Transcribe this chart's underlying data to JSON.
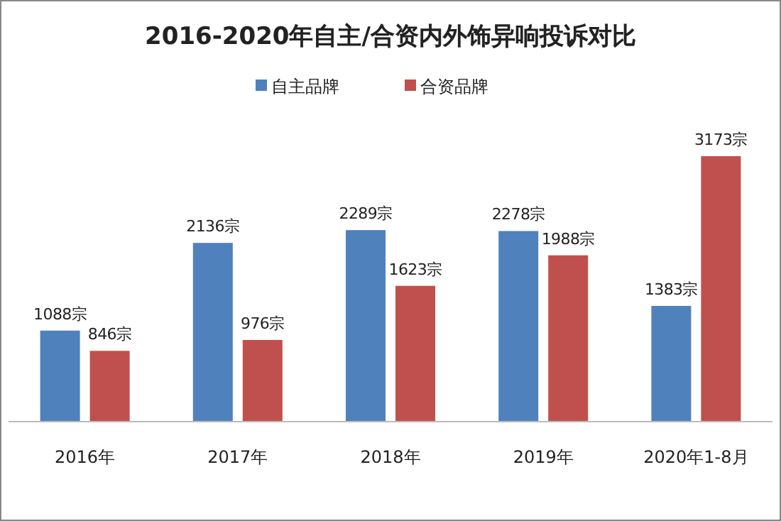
{
  "chart_data": {
    "type": "bar",
    "title": "2016-2020年自主/合资内外饰异响投诉对比",
    "legend": "top",
    "categories": [
      "2016年",
      "2017年",
      "2018年",
      "2019年",
      "2020年1-8月"
    ],
    "series": [
      {
        "name": "自主品牌",
        "color": "#4f81bd",
        "values": [
          1088,
          2136,
          2289,
          2278,
          1383
        ],
        "value_labels": [
          "1088宗",
          "2136宗",
          "2289宗",
          "2278宗",
          "1383宗"
        ]
      },
      {
        "name": "合资品牌",
        "color": "#c0504d",
        "values": [
          846,
          976,
          1623,
          1988,
          3173
        ],
        "value_labels": [
          "846宗",
          "976宗",
          "1623宗",
          "1988宗",
          "3173宗"
        ]
      }
    ]
  }
}
